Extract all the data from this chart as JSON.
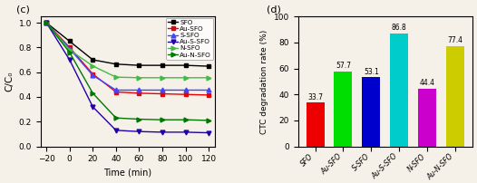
{
  "background_color": "#f5f0e8",
  "line_chart": {
    "title": "(c)",
    "xlabel": "Time (min)",
    "ylabel": "C/C₀",
    "x_ticks": [
      -20,
      0,
      20,
      40,
      60,
      80,
      100,
      120
    ],
    "xlim": [
      -25,
      125
    ],
    "ylim": [
      0.0,
      1.05
    ],
    "y_ticks": [
      0.0,
      0.2,
      0.4,
      0.6,
      0.8,
      1.0
    ],
    "series": [
      {
        "label": "SFO",
        "color": "#000000",
        "marker": "s",
        "markersize": 3.5,
        "x": [
          -20,
          0,
          20,
          40,
          60,
          80,
          100,
          120
        ],
        "y": [
          1.0,
          0.85,
          0.7,
          0.665,
          0.655,
          0.655,
          0.655,
          0.648
        ]
      },
      {
        "label": "Au-SFO",
        "color": "#ee0000",
        "marker": "s",
        "markersize": 3.5,
        "x": [
          -20,
          0,
          20,
          40,
          60,
          80,
          100,
          120
        ],
        "y": [
          1.0,
          0.8,
          0.585,
          0.44,
          0.43,
          0.425,
          0.42,
          0.415
        ]
      },
      {
        "label": "S-SFO",
        "color": "#4444ff",
        "marker": "^",
        "markersize": 3.5,
        "x": [
          -20,
          0,
          20,
          40,
          60,
          80,
          100,
          120
        ],
        "y": [
          1.0,
          0.79,
          0.575,
          0.455,
          0.455,
          0.455,
          0.455,
          0.455
        ]
      },
      {
        "label": "Au-S-SFO",
        "color": "#2200aa",
        "marker": "v",
        "markersize": 3.5,
        "x": [
          -20,
          0,
          20,
          40,
          60,
          80,
          100,
          120
        ],
        "y": [
          1.0,
          0.7,
          0.32,
          0.13,
          0.12,
          0.115,
          0.115,
          0.11
        ]
      },
      {
        "label": "N-SFO",
        "color": "#44bb44",
        "marker": ">",
        "markersize": 3.5,
        "x": [
          -20,
          0,
          20,
          40,
          60,
          80,
          100,
          120
        ],
        "y": [
          1.0,
          0.78,
          0.65,
          0.56,
          0.555,
          0.555,
          0.555,
          0.555
        ]
      },
      {
        "label": "Au-N-SFO",
        "color": "#007700",
        "marker": ">",
        "markersize": 3.5,
        "x": [
          -20,
          0,
          20,
          40,
          60,
          80,
          100,
          120
        ],
        "y": [
          1.0,
          0.76,
          0.43,
          0.23,
          0.22,
          0.215,
          0.215,
          0.21
        ]
      }
    ]
  },
  "bar_chart": {
    "title": "(d)",
    "xlabel": "",
    "ylabel": "CTC degradation rate (%)",
    "ylim": [
      0,
      100
    ],
    "y_ticks": [
      0,
      20,
      40,
      60,
      80,
      100
    ],
    "categories": [
      "SFO",
      "Au-SFO",
      "S-SFO",
      "Au-S-SFO",
      "N-SFO",
      "Au-N-SFO"
    ],
    "values": [
      33.7,
      57.7,
      53.1,
      86.8,
      44.4,
      77.4
    ],
    "bar_colors": [
      "#ee0000",
      "#00dd00",
      "#0000cc",
      "#00cccc",
      "#cc00cc",
      "#cccc00"
    ],
    "bar_width": 0.65
  }
}
